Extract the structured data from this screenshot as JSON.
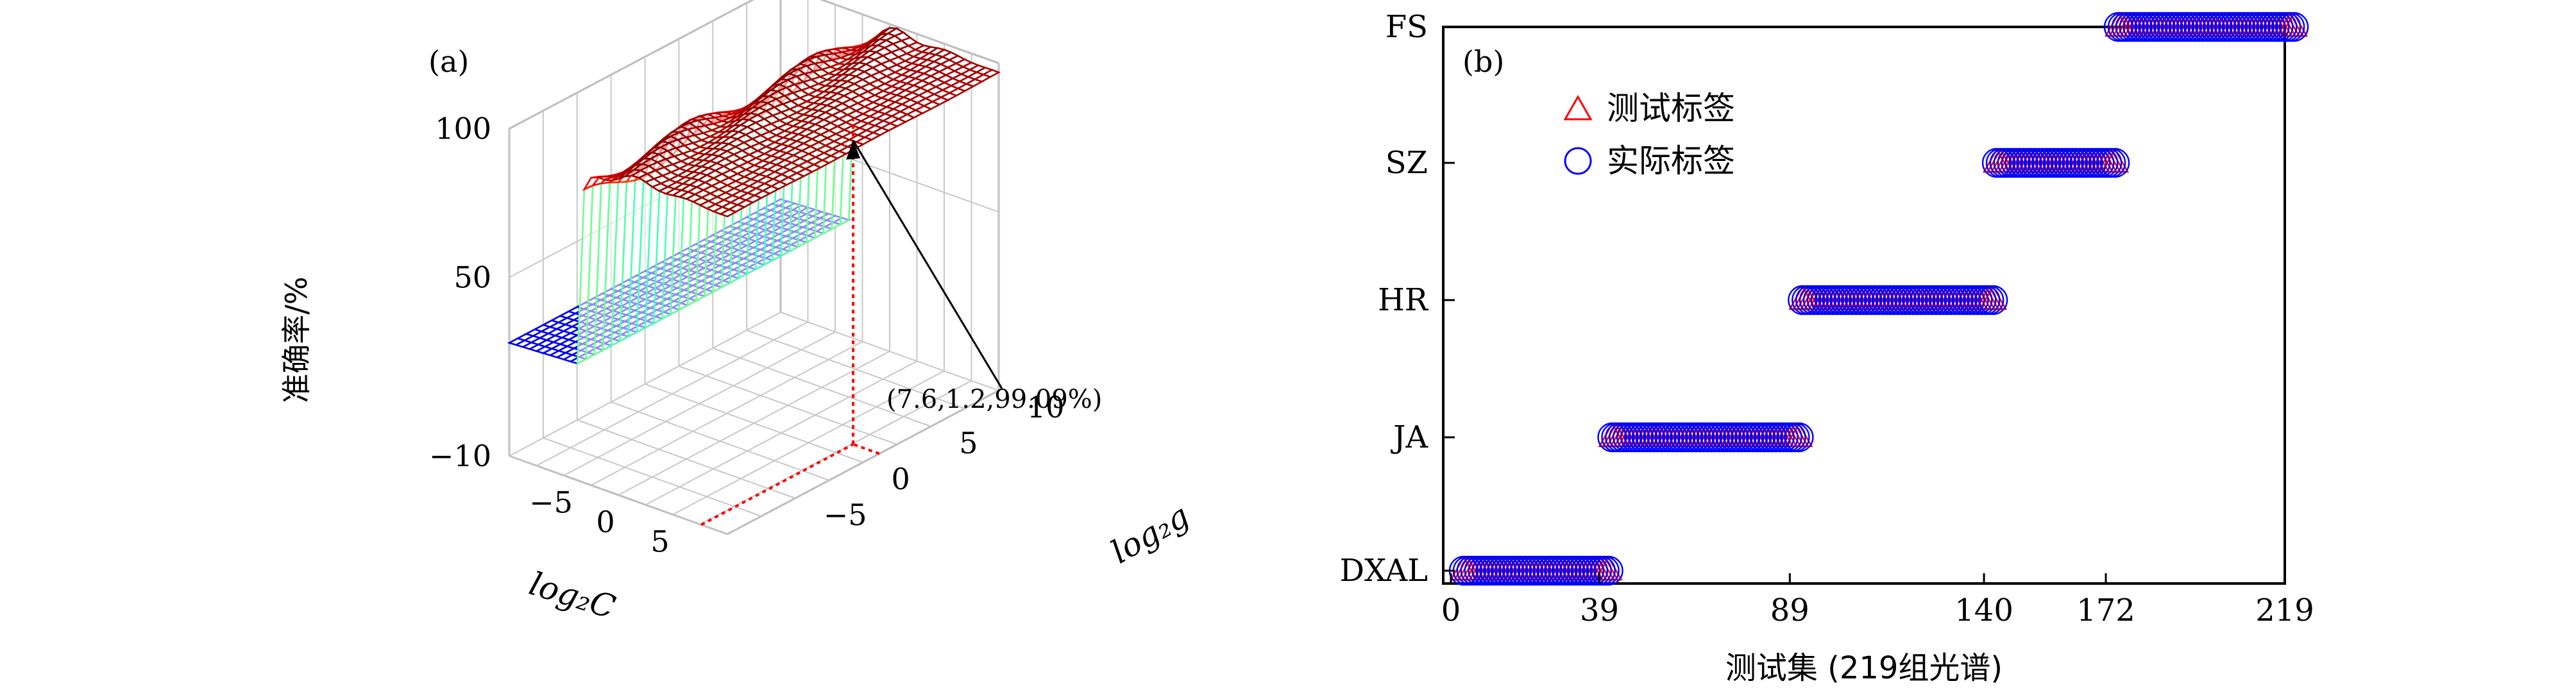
{
  "chart_data": [
    {
      "panel_label": "(a)",
      "type": "surface3d",
      "xlabel": "log₂C",
      "ylabel": "log₂g",
      "zlabel": "准确率/%",
      "x_ticks": [
        "−5",
        "0",
        "5"
      ],
      "y_ticks": [
        "−5",
        "0",
        "5",
        "10"
      ],
      "z_ticks": [
        "−10",
        "50",
        "100"
      ],
      "xlim": [
        -10,
        10
      ],
      "ylim": [
        -10,
        10
      ],
      "zlim": [
        -10,
        100
      ],
      "grid": true,
      "colormap": "jet",
      "optimum": {
        "log2C": 7.6,
        "log2g": 1.2,
        "accuracy": 99.09
      },
      "annotation": "(7.6,1.2,99.09%)"
    },
    {
      "panel_label": "(b)",
      "type": "scatter",
      "xlabel": "测试集 (219组光谱)",
      "x_ticks": [
        "0",
        "39",
        "89",
        "140",
        "172",
        "219"
      ],
      "xlim": [
        0,
        219
      ],
      "y_categories": [
        "DXAL",
        "JA",
        "HR",
        "SZ",
        "FS"
      ],
      "legend_position": "top-left",
      "series": [
        {
          "name": "测试标签",
          "marker": "triangle",
          "color": "#ff0000",
          "segments": [
            {
              "category": "DXAL",
              "x_start": 0,
              "x_end": 38
            },
            {
              "category": "JA",
              "x_start": 39,
              "x_end": 88
            },
            {
              "category": "HR",
              "x_start": 89,
              "x_end": 139
            },
            {
              "category": "SZ",
              "x_start": 140,
              "x_end": 171
            },
            {
              "category": "FS",
              "x_start": 172,
              "x_end": 218
            }
          ]
        },
        {
          "name": "实际标签",
          "marker": "circle",
          "color": "#0000ff",
          "segments": [
            {
              "category": "DXAL",
              "x_start": 0,
              "x_end": 38
            },
            {
              "category": "JA",
              "x_start": 39,
              "x_end": 88
            },
            {
              "category": "HR",
              "x_start": 89,
              "x_end": 139
            },
            {
              "category": "SZ",
              "x_start": 140,
              "x_end": 171
            },
            {
              "category": "FS",
              "x_start": 172,
              "x_end": 218
            }
          ]
        }
      ]
    }
  ]
}
